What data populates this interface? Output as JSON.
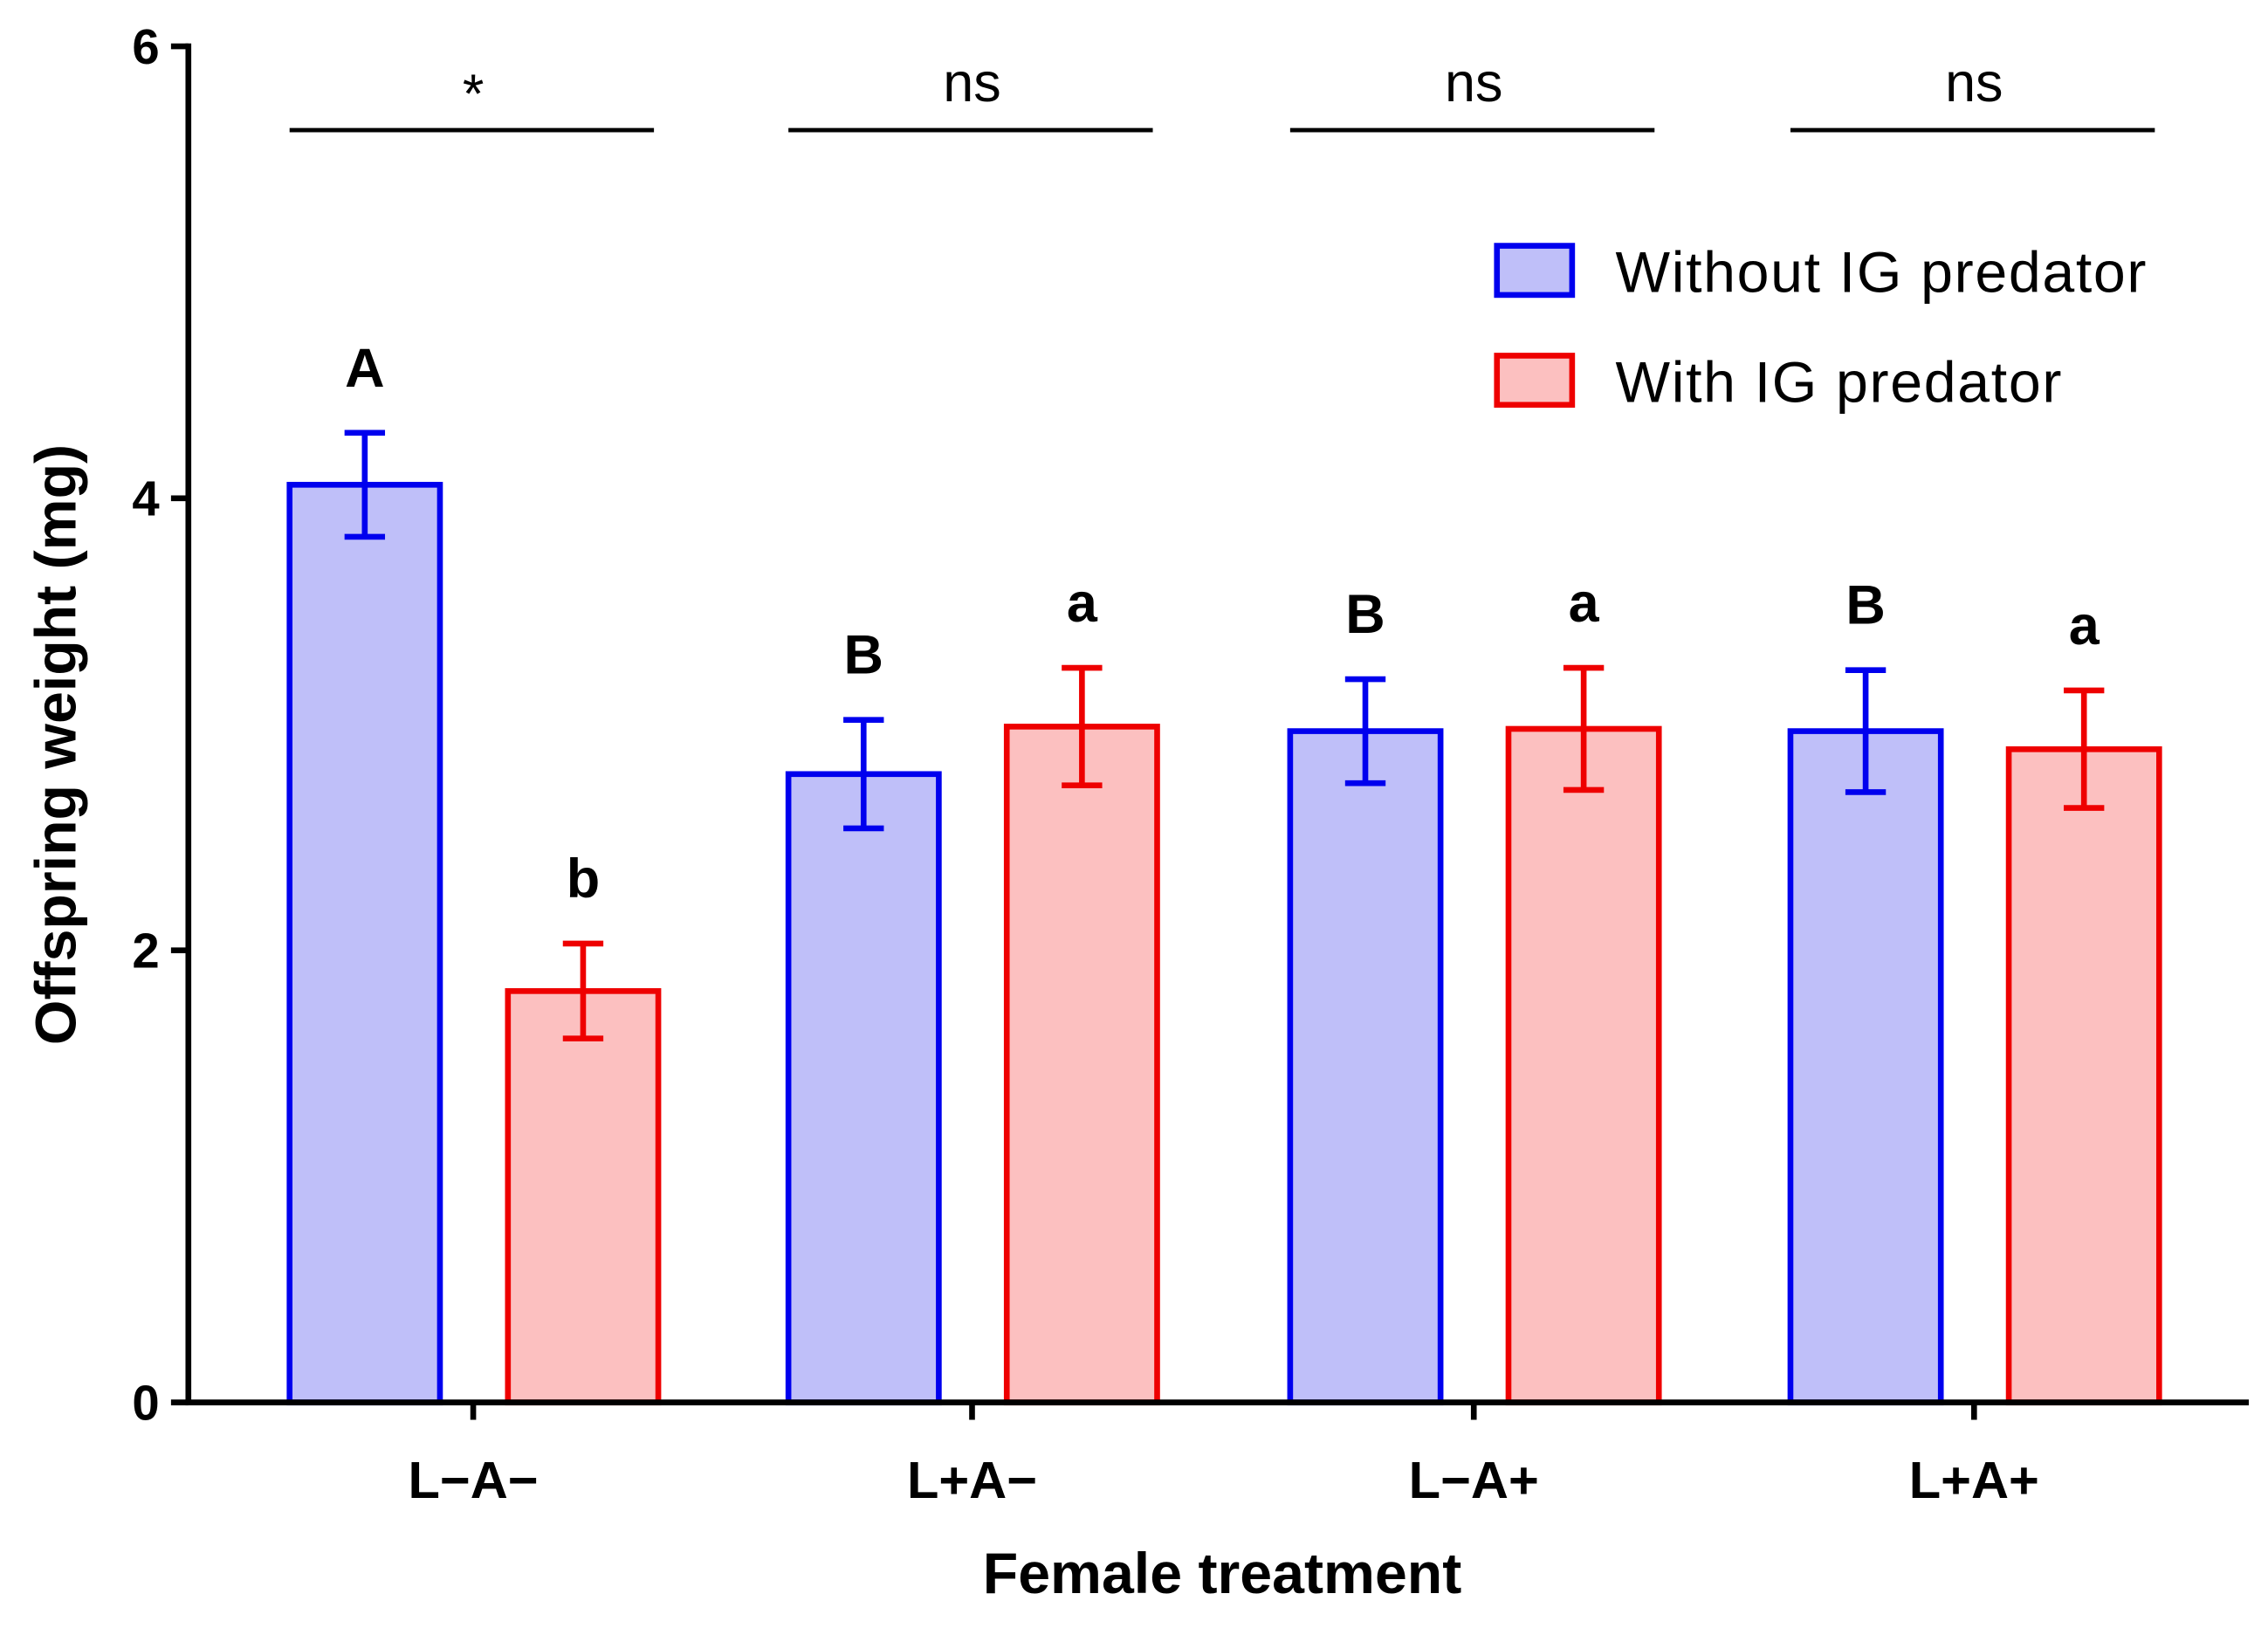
{
  "chart_data": {
    "type": "bar",
    "title": "",
    "xlabel": "Female treatment",
    "ylabel": "Offspring weight (mg)",
    "ylim": [
      0,
      6
    ],
    "yticks": [
      "0",
      "2",
      "4",
      "6"
    ],
    "categories": [
      "L−A−",
      "L+A−",
      "L−A+",
      "L+A+"
    ],
    "legend_position": "top-right",
    "series": [
      {
        "name": "Without IG predator",
        "fill": "#bfbff9",
        "stroke": "#0000ee",
        "values": [
          4.06,
          2.78,
          2.97,
          2.97
        ],
        "errors": [
          0.23,
          0.24,
          0.23,
          0.27
        ],
        "letters": [
          "A",
          "B",
          "B",
          "B"
        ]
      },
      {
        "name": "With IG predator",
        "fill": "#fcc0c0",
        "stroke": "#ee0000",
        "values": [
          1.82,
          2.99,
          2.98,
          2.89
        ],
        "errors": [
          0.21,
          0.26,
          0.27,
          0.26
        ],
        "letters": [
          "b",
          "a",
          "a",
          "a"
        ]
      }
    ],
    "significance": [
      "*",
      "ns",
      "ns",
      "ns"
    ]
  }
}
